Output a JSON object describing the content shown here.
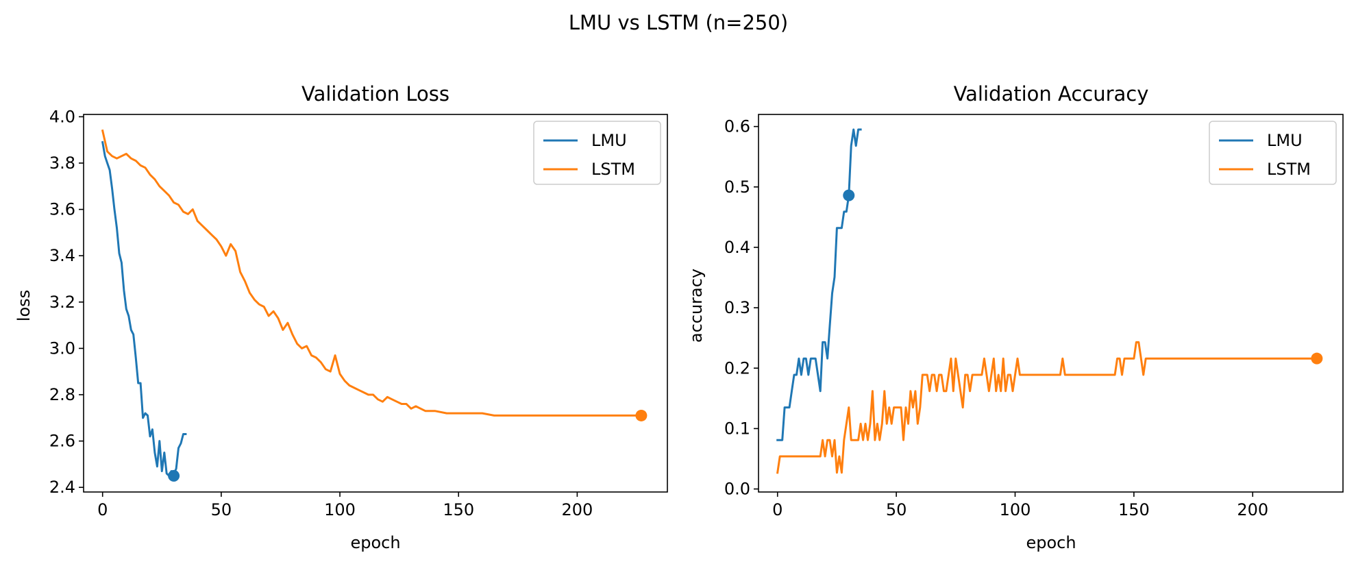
{
  "figure": {
    "suptitle": "LMU vs LSTM (n=250)"
  },
  "colors": {
    "lmu": "#1f77b4",
    "lstm": "#ff7f0e"
  },
  "chart_data": [
    {
      "type": "line",
      "title": "Validation Loss",
      "xlabel": "epoch",
      "ylabel": "loss",
      "xlim": [
        -8,
        238
      ],
      "ylim": [
        2.38,
        4.01
      ],
      "xticks": [
        0,
        50,
        100,
        150,
        200
      ],
      "yticks": [
        2.4,
        2.6,
        2.8,
        3.0,
        3.2,
        3.4,
        3.6,
        3.8,
        4.0
      ],
      "ytick_labels": [
        "2.4",
        "2.6",
        "2.8",
        "3.0",
        "3.2",
        "3.4",
        "3.6",
        "3.8",
        "4.0"
      ],
      "legend": "top-right",
      "grid": false,
      "series": [
        {
          "name": "LMU",
          "color": "#1f77b4",
          "x": [
            0,
            1,
            2,
            3,
            4,
            5,
            6,
            7,
            8,
            9,
            10,
            11,
            12,
            13,
            14,
            15,
            16,
            17,
            18,
            19,
            20,
            21,
            22,
            23,
            24,
            25,
            26,
            27,
            28,
            29,
            30,
            31,
            32,
            33,
            34,
            35
          ],
          "y": [
            3.89,
            3.83,
            3.8,
            3.77,
            3.69,
            3.6,
            3.52,
            3.41,
            3.37,
            3.25,
            3.17,
            3.14,
            3.08,
            3.06,
            2.96,
            2.85,
            2.85,
            2.7,
            2.72,
            2.71,
            2.62,
            2.65,
            2.55,
            2.49,
            2.6,
            2.47,
            2.55,
            2.46,
            2.45,
            2.47,
            2.46,
            2.48,
            2.57,
            2.59,
            2.63,
            2.63
          ],
          "marker": {
            "x": 30,
            "y": 2.45
          }
        },
        {
          "name": "LSTM",
          "color": "#ff7f0e",
          "x": [
            0,
            2,
            4,
            6,
            8,
            10,
            12,
            14,
            16,
            18,
            20,
            22,
            24,
            26,
            28,
            30,
            32,
            34,
            36,
            38,
            40,
            42,
            44,
            46,
            48,
            50,
            52,
            54,
            56,
            58,
            60,
            62,
            64,
            66,
            68,
            70,
            72,
            74,
            76,
            78,
            80,
            82,
            84,
            86,
            88,
            90,
            92,
            94,
            96,
            98,
            100,
            102,
            104,
            106,
            108,
            110,
            112,
            114,
            116,
            118,
            120,
            122,
            124,
            126,
            128,
            130,
            132,
            134,
            136,
            138,
            140,
            145,
            150,
            155,
            160,
            165,
            170,
            180,
            190,
            200,
            210,
            220,
            227
          ],
          "y": [
            3.94,
            3.85,
            3.83,
            3.82,
            3.83,
            3.84,
            3.82,
            3.81,
            3.79,
            3.78,
            3.75,
            3.73,
            3.7,
            3.68,
            3.66,
            3.63,
            3.62,
            3.59,
            3.58,
            3.6,
            3.55,
            3.53,
            3.51,
            3.49,
            3.47,
            3.44,
            3.4,
            3.45,
            3.42,
            3.33,
            3.29,
            3.24,
            3.21,
            3.19,
            3.18,
            3.14,
            3.16,
            3.13,
            3.08,
            3.11,
            3.06,
            3.02,
            3.0,
            3.01,
            2.97,
            2.96,
            2.94,
            2.91,
            2.9,
            2.97,
            2.89,
            2.86,
            2.84,
            2.83,
            2.82,
            2.81,
            2.8,
            2.8,
            2.78,
            2.77,
            2.79,
            2.78,
            2.77,
            2.76,
            2.76,
            2.74,
            2.75,
            2.74,
            2.73,
            2.73,
            2.73,
            2.72,
            2.72,
            2.72,
            2.72,
            2.71,
            2.71,
            2.71,
            2.71,
            2.71,
            2.71,
            2.71,
            2.71
          ],
          "marker": {
            "x": 227,
            "y": 2.71
          }
        }
      ]
    },
    {
      "type": "line",
      "title": "Validation Accuracy",
      "xlabel": "epoch",
      "ylabel": "accuracy",
      "xlim": [
        -8,
        238
      ],
      "ylim": [
        -0.005,
        0.62
      ],
      "xticks": [
        0,
        50,
        100,
        150,
        200
      ],
      "yticks": [
        0.0,
        0.1,
        0.2,
        0.3,
        0.4,
        0.5,
        0.6
      ],
      "ytick_labels": [
        "0.0",
        "0.1",
        "0.2",
        "0.3",
        "0.4",
        "0.5",
        "0.6"
      ],
      "legend": "top-right",
      "grid": false,
      "series": [
        {
          "name": "LMU",
          "color": "#1f77b4",
          "x": [
            0,
            1,
            2,
            3,
            4,
            5,
            6,
            7,
            8,
            9,
            10,
            11,
            12,
            13,
            14,
            15,
            16,
            17,
            18,
            19,
            20,
            21,
            22,
            23,
            24,
            25,
            26,
            27,
            28,
            29,
            30,
            31,
            32,
            33,
            34,
            35
          ],
          "y": [
            0.081,
            0.081,
            0.081,
            0.135,
            0.135,
            0.135,
            0.162,
            0.189,
            0.189,
            0.216,
            0.189,
            0.216,
            0.216,
            0.189,
            0.216,
            0.216,
            0.216,
            0.189,
            0.162,
            0.243,
            0.243,
            0.216,
            0.27,
            0.324,
            0.351,
            0.432,
            0.432,
            0.432,
            0.459,
            0.459,
            0.486,
            0.568,
            0.595,
            0.568,
            0.595,
            0.595
          ],
          "marker": {
            "x": 30,
            "y": 0.486
          }
        },
        {
          "name": "LSTM",
          "color": "#ff7f0e",
          "x": [
            0,
            1,
            2,
            5,
            10,
            15,
            18,
            19,
            20,
            21,
            22,
            23,
            24,
            25,
            26,
            27,
            28,
            29,
            30,
            31,
            32,
            33,
            34,
            35,
            36,
            37,
            38,
            39,
            40,
            41,
            42,
            43,
            44,
            45,
            46,
            47,
            48,
            49,
            50,
            51,
            52,
            53,
            54,
            55,
            56,
            57,
            58,
            59,
            60,
            61,
            62,
            63,
            64,
            65,
            66,
            67,
            68,
            69,
            70,
            71,
            72,
            73,
            74,
            75,
            76,
            77,
            78,
            79,
            80,
            81,
            82,
            83,
            84,
            85,
            86,
            87,
            88,
            89,
            90,
            91,
            92,
            93,
            94,
            95,
            96,
            97,
            98,
            99,
            100,
            101,
            102,
            110,
            119,
            120,
            121,
            130,
            140,
            142,
            143,
            144,
            145,
            146,
            150,
            151,
            152,
            153,
            154,
            155,
            156,
            170,
            190,
            210,
            227
          ],
          "y": [
            0.027,
            0.054,
            0.054,
            0.054,
            0.054,
            0.054,
            0.054,
            0.081,
            0.054,
            0.081,
            0.081,
            0.054,
            0.081,
            0.027,
            0.054,
            0.027,
            0.081,
            0.108,
            0.135,
            0.081,
            0.081,
            0.081,
            0.081,
            0.108,
            0.081,
            0.108,
            0.081,
            0.108,
            0.162,
            0.081,
            0.108,
            0.081,
            0.108,
            0.162,
            0.108,
            0.135,
            0.108,
            0.135,
            0.135,
            0.135,
            0.135,
            0.081,
            0.135,
            0.108,
            0.162,
            0.135,
            0.162,
            0.108,
            0.135,
            0.189,
            0.189,
            0.189,
            0.162,
            0.189,
            0.189,
            0.162,
            0.189,
            0.189,
            0.162,
            0.162,
            0.189,
            0.216,
            0.162,
            0.216,
            0.189,
            0.162,
            0.135,
            0.189,
            0.189,
            0.162,
            0.189,
            0.189,
            0.189,
            0.189,
            0.189,
            0.216,
            0.189,
            0.162,
            0.189,
            0.216,
            0.162,
            0.189,
            0.162,
            0.216,
            0.162,
            0.189,
            0.189,
            0.162,
            0.189,
            0.216,
            0.189,
            0.189,
            0.189,
            0.216,
            0.189,
            0.189,
            0.189,
            0.189,
            0.216,
            0.216,
            0.189,
            0.216,
            0.216,
            0.243,
            0.243,
            0.216,
            0.189,
            0.216,
            0.216,
            0.216,
            0.216,
            0.216,
            0.216
          ],
          "marker": {
            "x": 227,
            "y": 0.216
          }
        }
      ]
    }
  ]
}
